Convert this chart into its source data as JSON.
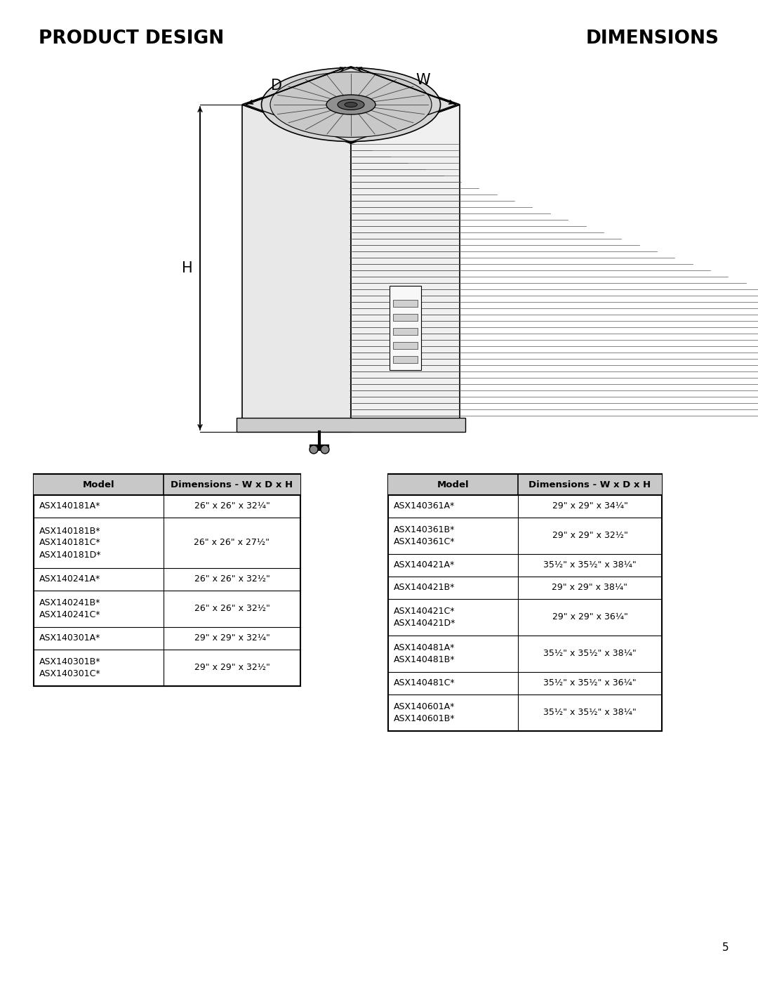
{
  "title_left": "PRODUCT DESIGN",
  "title_right": "DIMENSIONS",
  "title_fontsize": 19,
  "bg_color": "#ffffff",
  "text_color": "#000000",
  "table_left": {
    "headers": [
      "Model",
      "Dimensions - W x D x H"
    ],
    "rows": [
      [
        "ASX140181A*",
        "26\" x 26\" x 32¼\""
      ],
      [
        "ASX140181B*\nASX140181C*\nASX140181D*",
        "26\" x 26\" x 27½\""
      ],
      [
        "ASX140241A*",
        "26\" x 26\" x 32½\""
      ],
      [
        "ASX140241B*\nASX140241C*",
        "26\" x 26\" x 32½\""
      ],
      [
        "ASX140301A*",
        "29\" x 29\" x 32¼\""
      ],
      [
        "ASX140301B*\nASX140301C*",
        "29\" x 29\" x 32½\""
      ]
    ]
  },
  "table_right": {
    "headers": [
      "Model",
      "Dimensions - W x D x H"
    ],
    "rows": [
      [
        "ASX140361A*",
        "29\" x 29\" x 34¼\""
      ],
      [
        "ASX140361B*\nASX140361C*",
        "29\" x 29\" x 32½\""
      ],
      [
        "ASX140421A*",
        "35½\" x 35½\" x 38¼\""
      ],
      [
        "ASX140421B*",
        "29\" x 29\" x 38¼\""
      ],
      [
        "ASX140421C*\nASX140421D*",
        "29\" x 29\" x 36¼\""
      ],
      [
        "ASX140481A*\nASX140481B*",
        "35½\" x 35½\" x 38¼\""
      ],
      [
        "ASX140481C*",
        "35½\" x 35½\" x 36¼\""
      ],
      [
        "ASX140601A*\nASX140601B*",
        "35½\" x 35½\" x 38¼\""
      ]
    ]
  },
  "page_number": "5",
  "table_fontsize": 9.0,
  "header_fontsize": 9.5
}
